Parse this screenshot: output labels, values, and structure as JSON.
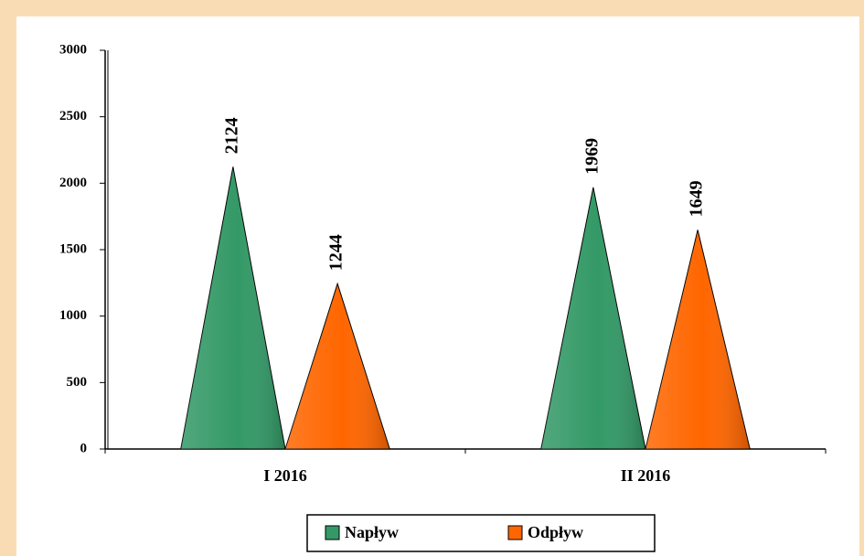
{
  "chart_data": {
    "type": "cone",
    "categories": [
      "I 2016",
      "II 2016"
    ],
    "series": [
      {
        "name": "Napływ",
        "color": "#339966",
        "values": [
          2124,
          1969
        ]
      },
      {
        "name": "Odpływ",
        "color": "#ff6600",
        "values": [
          1244,
          1649
        ]
      }
    ],
    "ylim": [
      0,
      3000
    ],
    "yticks": [
      0,
      500,
      1000,
      1500,
      2000,
      2500,
      3000
    ],
    "legend": "bottom"
  }
}
